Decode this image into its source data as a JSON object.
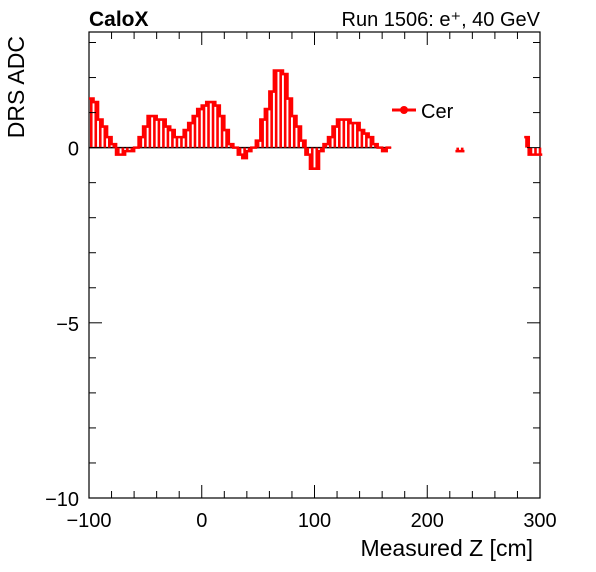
{
  "chart_data": {
    "type": "line",
    "title_left": "CaloX",
    "title_right": "Run 1506: e⁺, 40 GeV",
    "xlabel": "Measured Z [cm]",
    "ylabel": "DRS ADC",
    "xlim": [
      -100,
      300
    ],
    "ylim": [
      -10,
      3.3
    ],
    "xticks": [
      -100,
      0,
      100,
      200,
      300
    ],
    "xtick_labels": [
      "−100",
      "0",
      "100",
      "200",
      "300"
    ],
    "yticks": [
      -10,
      -5,
      0
    ],
    "ytick_labels": [
      "−10",
      "−5",
      "0"
    ],
    "grid": false,
    "legend_position": "top-right",
    "series": [
      {
        "name": "Cer",
        "color": "#ff0000",
        "style": "histogram-step",
        "segments": [
          {
            "x": [
              -100,
              -96,
              -92,
              -88,
              -84,
              -80,
              -76,
              -72,
              -68,
              -64,
              -60,
              -56,
              -52,
              -48,
              -44,
              -40,
              -36,
              -32,
              -28,
              -24,
              -20,
              -16,
              -12,
              -8,
              -4,
              0,
              4,
              8,
              12,
              16,
              20,
              24,
              28,
              32,
              36,
              40,
              44,
              48,
              52,
              56,
              60,
              64,
              68,
              72,
              76,
              80,
              84,
              88,
              92,
              96,
              100,
              104,
              108,
              112,
              116,
              120,
              124,
              128,
              132,
              136,
              140,
              144,
              148,
              152,
              156,
              160,
              164
            ],
            "values": [
              1.4,
              1.3,
              0.8,
              0.6,
              0.3,
              0.1,
              -0.2,
              -0.2,
              -0.1,
              -0.1,
              0.0,
              0.3,
              0.6,
              0.9,
              0.9,
              0.8,
              0.8,
              0.6,
              0.5,
              0.3,
              0.3,
              0.5,
              0.7,
              0.9,
              1.1,
              1.2,
              1.3,
              1.3,
              1.2,
              0.9,
              0.5,
              0.1,
              0.0,
              -0.2,
              -0.3,
              -0.1,
              0.0,
              0.2,
              0.8,
              1.1,
              1.6,
              2.2,
              2.2,
              2.1,
              1.4,
              0.9,
              0.6,
              0.2,
              -0.2,
              -0.6,
              -0.6,
              -0.1,
              0.1,
              0.3,
              0.6,
              0.8,
              0.8,
              0.8,
              0.7,
              0.7,
              0.5,
              0.4,
              0.3,
              0.1,
              0.0,
              -0.1,
              0.0
            ]
          },
          {
            "x": [
              225,
              229
            ],
            "values": [
              -0.1,
              -0.1
            ]
          },
          {
            "x": [
              286,
              290,
              294,
              298
            ],
            "values": [
              0.3,
              -0.2,
              -0.2,
              -0.2
            ]
          }
        ]
      }
    ]
  }
}
